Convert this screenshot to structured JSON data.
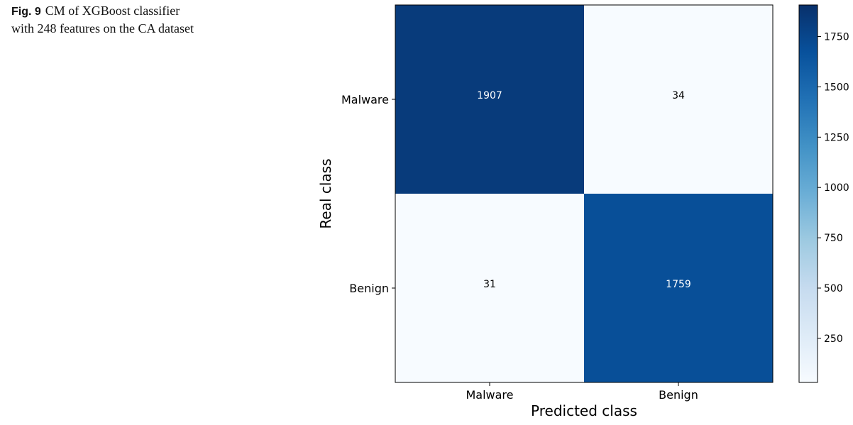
{
  "caption": {
    "label": "Fig. 9",
    "text": "CM of XGBoost classifier with 248 features on the CA dataset"
  },
  "chart_data": {
    "type": "heatmap",
    "title": "",
    "xlabel": "Predicted class",
    "ylabel": "Real class",
    "x_categories": [
      "Malware",
      "Benign"
    ],
    "y_categories": [
      "Malware",
      "Benign"
    ],
    "values": [
      [
        1907,
        34
      ],
      [
        31,
        1759
      ]
    ],
    "colorbar": {
      "colormap": "Blues",
      "range": [
        31,
        1907
      ],
      "ticks": [
        250,
        500,
        750,
        1000,
        1250,
        1500,
        1750
      ],
      "tick_labels": [
        "250",
        "500",
        "750",
        "1000",
        "1250",
        "1500",
        "1750"
      ]
    },
    "colors": {
      "low": "#f7fbff",
      "high": "#08306b",
      "text_on_dark": "#ffffff",
      "text_on_light": "#000000"
    }
  }
}
